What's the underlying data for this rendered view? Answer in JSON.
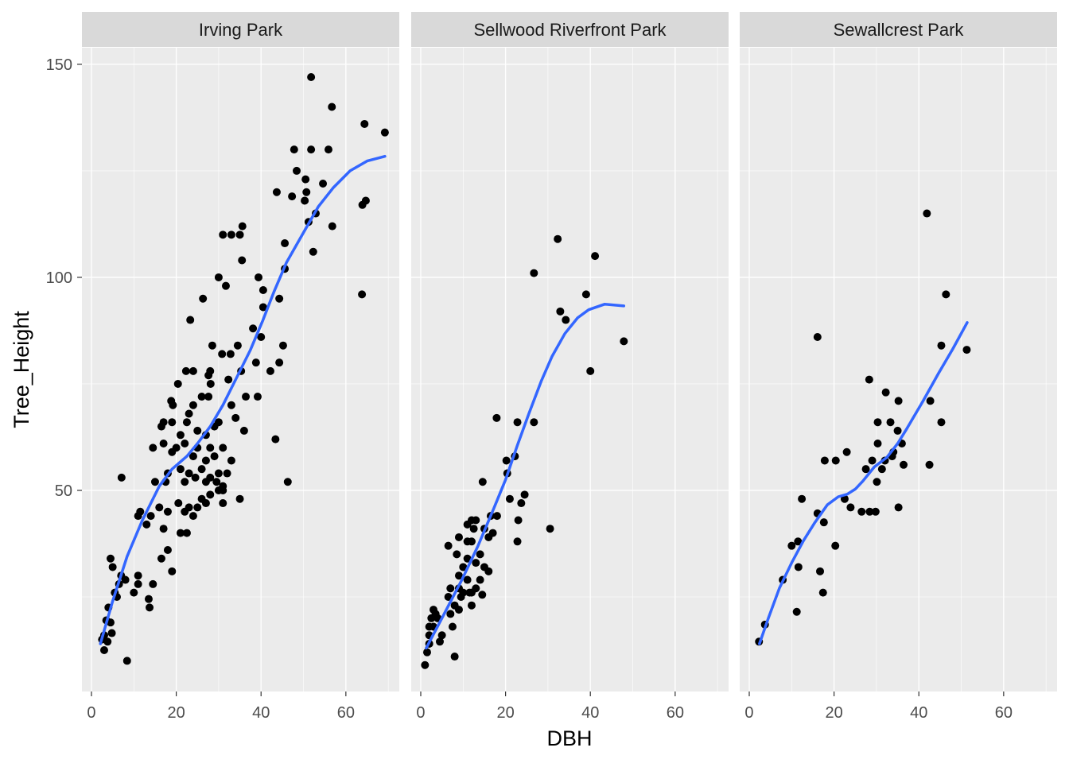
{
  "chart_data": {
    "type": "scatter",
    "title": "",
    "xlabel": "DBH",
    "ylabel": "Tree_Height",
    "xlim": [
      -2.25,
      72.6
    ],
    "ylim": [
      2.8,
      153.9
    ],
    "x_ticks": [
      0,
      20,
      40,
      60
    ],
    "y_ticks": [
      50,
      100,
      150
    ],
    "x_tick_labels": [
      "0",
      "20",
      "40",
      "60"
    ],
    "y_tick_labels": [
      "50",
      "100",
      "150"
    ],
    "grid": true,
    "colors": {
      "points": "#000000",
      "smooth": "#3366FF",
      "panel": "#EBEBEB",
      "strip": "#D9D9D9"
    },
    "panels": [
      {
        "name": "Irving Park",
        "points": [
          [
            51.8,
            147
          ],
          [
            56.7,
            140
          ],
          [
            64.4,
            136
          ],
          [
            69.2,
            134
          ],
          [
            47.8,
            130
          ],
          [
            51.8,
            130
          ],
          [
            55.9,
            130
          ],
          [
            48.4,
            125
          ],
          [
            54.6,
            122
          ],
          [
            50.5,
            123
          ],
          [
            43.7,
            120
          ],
          [
            47.3,
            119
          ],
          [
            50.7,
            120
          ],
          [
            50.3,
            118
          ],
          [
            64.7,
            118
          ],
          [
            63.9,
            117
          ],
          [
            52.9,
            115
          ],
          [
            51.2,
            113
          ],
          [
            56.8,
            112
          ],
          [
            35.6,
            112
          ],
          [
            31,
            110
          ],
          [
            33,
            110
          ],
          [
            35,
            110
          ],
          [
            45.6,
            108
          ],
          [
            52.3,
            106
          ],
          [
            35.5,
            104
          ],
          [
            45.6,
            102
          ],
          [
            30,
            100
          ],
          [
            39.4,
            100
          ],
          [
            31.7,
            98
          ],
          [
            40.5,
            97
          ],
          [
            63.8,
            96
          ],
          [
            26.3,
            95
          ],
          [
            44.3,
            95
          ],
          [
            40.5,
            93
          ],
          [
            23.3,
            90
          ],
          [
            38.1,
            88
          ],
          [
            40,
            86
          ],
          [
            28.5,
            84
          ],
          [
            34.5,
            84
          ],
          [
            45.2,
            84
          ],
          [
            30.8,
            82
          ],
          [
            32.8,
            82
          ],
          [
            38.8,
            80
          ],
          [
            44.3,
            80
          ],
          [
            22.3,
            78
          ],
          [
            24,
            78
          ],
          [
            28,
            78
          ],
          [
            35.3,
            78
          ],
          [
            42.2,
            78
          ],
          [
            27.6,
            77
          ],
          [
            32.3,
            76
          ],
          [
            20.4,
            75
          ],
          [
            28.1,
            75
          ],
          [
            18.8,
            71
          ],
          [
            26,
            72
          ],
          [
            27.6,
            72
          ],
          [
            36.4,
            72
          ],
          [
            39.2,
            72
          ],
          [
            19.2,
            70
          ],
          [
            24,
            70
          ],
          [
            33,
            70
          ],
          [
            23,
            68
          ],
          [
            34,
            67
          ],
          [
            17,
            66
          ],
          [
            19,
            66
          ],
          [
            22.5,
            66
          ],
          [
            29,
            65
          ],
          [
            30,
            66
          ],
          [
            16.5,
            65
          ],
          [
            21,
            63
          ],
          [
            25,
            64
          ],
          [
            27,
            63
          ],
          [
            36,
            64
          ],
          [
            14.5,
            60
          ],
          [
            17,
            61
          ],
          [
            20,
            60
          ],
          [
            22,
            61
          ],
          [
            25,
            60
          ],
          [
            28,
            60
          ],
          [
            31,
            60
          ],
          [
            19,
            59
          ],
          [
            24,
            58
          ],
          [
            27,
            57
          ],
          [
            29,
            58
          ],
          [
            33,
            57
          ],
          [
            18,
            54
          ],
          [
            21,
            55
          ],
          [
            23,
            54
          ],
          [
            26,
            55
          ],
          [
            28,
            53
          ],
          [
            30,
            54
          ],
          [
            32,
            54
          ],
          [
            15,
            52
          ],
          [
            17.5,
            52
          ],
          [
            22,
            52
          ],
          [
            24.5,
            53
          ],
          [
            27,
            52
          ],
          [
            29.5,
            52
          ],
          [
            31,
            51
          ],
          [
            43.4,
            62
          ],
          [
            46.3,
            52
          ],
          [
            30,
            50
          ],
          [
            31,
            50
          ],
          [
            26,
            48
          ],
          [
            28,
            49
          ],
          [
            35,
            48
          ],
          [
            20.5,
            47
          ],
          [
            23,
            46
          ],
          [
            27,
            47
          ],
          [
            31,
            47
          ],
          [
            16,
            46
          ],
          [
            18,
            45
          ],
          [
            22,
            45
          ],
          [
            24,
            44
          ],
          [
            25,
            46
          ],
          [
            14,
            44
          ],
          [
            11,
            44
          ],
          [
            11.5,
            45
          ],
          [
            13,
            42
          ],
          [
            17,
            41
          ],
          [
            21,
            40
          ],
          [
            22.5,
            40
          ],
          [
            7.1,
            53
          ],
          [
            18,
            36
          ],
          [
            16.5,
            34
          ],
          [
            4.5,
            34
          ],
          [
            19,
            31
          ],
          [
            5,
            32
          ],
          [
            11,
            30
          ],
          [
            7,
            30
          ],
          [
            8,
            29
          ],
          [
            6.5,
            28
          ],
          [
            14.5,
            28
          ],
          [
            11,
            28
          ],
          [
            5.5,
            26
          ],
          [
            10,
            26
          ],
          [
            6,
            25
          ],
          [
            13.5,
            24.5
          ],
          [
            13.7,
            22.5
          ],
          [
            4,
            22.5
          ],
          [
            3.5,
            19.5
          ],
          [
            4.5,
            19
          ],
          [
            3,
            16
          ],
          [
            4.8,
            16.5
          ],
          [
            2.5,
            15
          ],
          [
            3.8,
            14.5
          ],
          [
            3,
            12.5
          ],
          [
            8.4,
            10
          ]
        ],
        "smooth": [
          [
            2.1,
            14
          ],
          [
            5,
            24
          ],
          [
            8.4,
            34.5
          ],
          [
            12,
            43
          ],
          [
            16,
            51
          ],
          [
            19,
            55
          ],
          [
            22.5,
            58
          ],
          [
            25,
            61
          ],
          [
            28,
            65
          ],
          [
            31,
            70
          ],
          [
            34.7,
            77.4
          ],
          [
            37.5,
            83
          ],
          [
            40.3,
            89.6
          ],
          [
            43,
            96.5
          ],
          [
            46,
            103.5
          ],
          [
            50,
            110.5
          ],
          [
            53.5,
            116.6
          ],
          [
            57,
            121
          ],
          [
            61,
            125
          ],
          [
            65,
            127.3
          ],
          [
            69.2,
            128.4
          ]
        ]
      },
      {
        "name": "Sellwood Riverfront Park",
        "points": [
          [
            32.3,
            109
          ],
          [
            41.1,
            105
          ],
          [
            26.7,
            101
          ],
          [
            39,
            96
          ],
          [
            32.9,
            92
          ],
          [
            34.2,
            90
          ],
          [
            47.9,
            85
          ],
          [
            40,
            78
          ],
          [
            17.9,
            67
          ],
          [
            22.8,
            66
          ],
          [
            26.7,
            66
          ],
          [
            22.2,
            58
          ],
          [
            20.2,
            57
          ],
          [
            20.4,
            54
          ],
          [
            14.6,
            52
          ],
          [
            24.5,
            49
          ],
          [
            21,
            48
          ],
          [
            23.7,
            47
          ],
          [
            18,
            44
          ],
          [
            16.5,
            44
          ],
          [
            23,
            43
          ],
          [
            30.5,
            41
          ],
          [
            12,
            43
          ],
          [
            13,
            43
          ],
          [
            11,
            42
          ],
          [
            12.5,
            41
          ],
          [
            15,
            41
          ],
          [
            17,
            40
          ],
          [
            6.5,
            37
          ],
          [
            9,
            39
          ],
          [
            11,
            38
          ],
          [
            12,
            38
          ],
          [
            16,
            39
          ],
          [
            8.5,
            35
          ],
          [
            11,
            34
          ],
          [
            14,
            35
          ],
          [
            10,
            32
          ],
          [
            13,
            33
          ],
          [
            15,
            32
          ],
          [
            16,
            31
          ],
          [
            9,
            30
          ],
          [
            11,
            29
          ],
          [
            14,
            29
          ],
          [
            7,
            27
          ],
          [
            9,
            27
          ],
          [
            12,
            26
          ],
          [
            10,
            26
          ],
          [
            13,
            27
          ],
          [
            6.5,
            25
          ],
          [
            9.5,
            25
          ],
          [
            11.5,
            26
          ],
          [
            14.5,
            25.5
          ],
          [
            8,
            23
          ],
          [
            12,
            23
          ],
          [
            7,
            21
          ],
          [
            9,
            22
          ],
          [
            3,
            22
          ],
          [
            3.5,
            21
          ],
          [
            2.5,
            20
          ],
          [
            4,
            20
          ],
          [
            2,
            18
          ],
          [
            3,
            18
          ],
          [
            7.5,
            18
          ],
          [
            2,
            16
          ],
          [
            5,
            16
          ],
          [
            4.5,
            14.5
          ],
          [
            2,
            14
          ],
          [
            1.5,
            12
          ],
          [
            8,
            11
          ],
          [
            1,
            9
          ],
          [
            22.8,
            38
          ]
        ],
        "smooth": [
          [
            1.3,
            13
          ],
          [
            5,
            20
          ],
          [
            9.7,
            29
          ],
          [
            13.5,
            37
          ],
          [
            17.2,
            45.7
          ],
          [
            20,
            52.5
          ],
          [
            22.8,
            60.6
          ],
          [
            25.5,
            68
          ],
          [
            28.4,
            75.6
          ],
          [
            31,
            81.5
          ],
          [
            34,
            86.8
          ],
          [
            37,
            90.5
          ],
          [
            39.6,
            92.4
          ],
          [
            43.4,
            93.7
          ],
          [
            47.9,
            93.3
          ]
        ]
      },
      {
        "name": "Sewallcrest Park",
        "points": [
          [
            41.9,
            115
          ],
          [
            46.4,
            96
          ],
          [
            16.1,
            86
          ],
          [
            45.3,
            84
          ],
          [
            51.3,
            83
          ],
          [
            28.3,
            76
          ],
          [
            32.2,
            73
          ],
          [
            35.2,
            71
          ],
          [
            42.7,
            71
          ],
          [
            30.3,
            66
          ],
          [
            33.3,
            66
          ],
          [
            45.3,
            66
          ],
          [
            35,
            64
          ],
          [
            23,
            59
          ],
          [
            30.3,
            61
          ],
          [
            17.8,
            57
          ],
          [
            20.4,
            57
          ],
          [
            29,
            57
          ],
          [
            32,
            57
          ],
          [
            33.7,
            58
          ],
          [
            36,
            61
          ],
          [
            34,
            59
          ],
          [
            42.5,
            56
          ],
          [
            36.4,
            56
          ],
          [
            27.5,
            55
          ],
          [
            31.3,
            55
          ],
          [
            30.1,
            52
          ],
          [
            12.4,
            48
          ],
          [
            22.5,
            48
          ],
          [
            23.9,
            46
          ],
          [
            26.5,
            45
          ],
          [
            28.4,
            45
          ],
          [
            29.8,
            45
          ],
          [
            35.2,
            46
          ],
          [
            16.1,
            44.6
          ],
          [
            17.6,
            42.5
          ],
          [
            10,
            37
          ],
          [
            11.5,
            38
          ],
          [
            20.3,
            37
          ],
          [
            11.6,
            32
          ],
          [
            16.7,
            31
          ],
          [
            7.9,
            29
          ],
          [
            17.4,
            26
          ],
          [
            11.2,
            21.5
          ],
          [
            3.7,
            18.5
          ],
          [
            2.3,
            14.5
          ]
        ],
        "smooth": [
          [
            2.4,
            14
          ],
          [
            4.5,
            20
          ],
          [
            7.1,
            27
          ],
          [
            10,
            33
          ],
          [
            12.8,
            38.2
          ],
          [
            15.5,
            42.5
          ],
          [
            18.4,
            46.6
          ],
          [
            21,
            48.5
          ],
          [
            23.1,
            49.1
          ],
          [
            25,
            50.3
          ],
          [
            26.8,
            52.2
          ],
          [
            29.5,
            55.5
          ],
          [
            32.5,
            57.8
          ],
          [
            35,
            61
          ],
          [
            37.1,
            64.4
          ],
          [
            41,
            71
          ],
          [
            44.6,
            77.4
          ],
          [
            48,
            83.2
          ],
          [
            51.4,
            89.4
          ]
        ]
      }
    ]
  }
}
